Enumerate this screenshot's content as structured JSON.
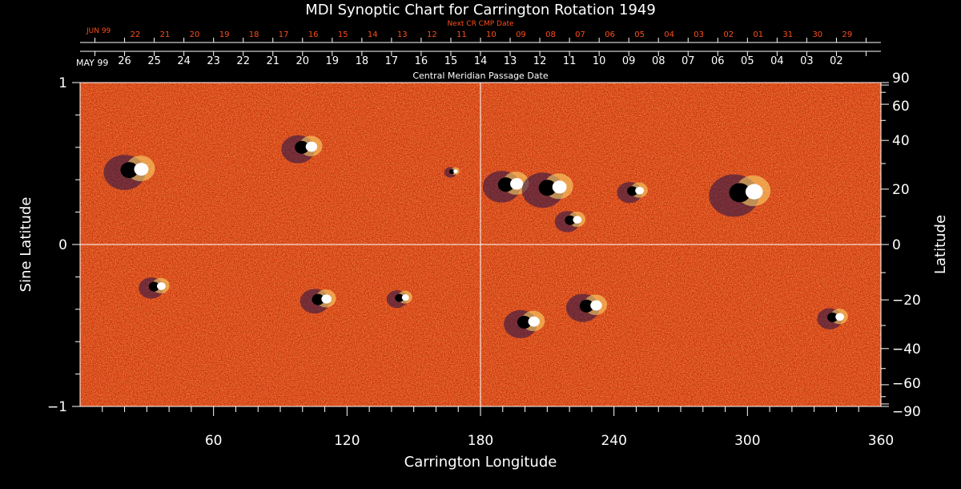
{
  "chart_data": {
    "type": "heatmap",
    "title": "MDI Synoptic Chart for Carrington Rotation 1949",
    "next_cr_label": "Next CR CMP Date",
    "next_cr_month": "JUN 99",
    "next_cr_dates": [
      "22",
      "21",
      "20",
      "19",
      "18",
      "17",
      "16",
      "15",
      "14",
      "13",
      "12",
      "11",
      "10",
      "09",
      "08",
      "07",
      "06",
      "05",
      "04",
      "03",
      "02",
      "01",
      "31",
      "30",
      "29"
    ],
    "cmp_month": "MAY 99",
    "cmp_dates": [
      "26",
      "25",
      "24",
      "23",
      "22",
      "21",
      "20",
      "19",
      "18",
      "17",
      "16",
      "15",
      "14",
      "13",
      "12",
      "11",
      "10",
      "09",
      "08",
      "07",
      "06",
      "05",
      "04",
      "03",
      "02"
    ],
    "cmp_axis_label": "Central Meridian Passage Date",
    "xlabel": "Carrington Longitude",
    "ylabel_left": "Sine Latitude",
    "ylabel_right": "Latitude",
    "xlim": [
      0,
      360
    ],
    "ylim": [
      -1,
      1
    ],
    "x_ticks": [
      60,
      120,
      180,
      240,
      300,
      360
    ],
    "x_tick_labels": [
      "60",
      "120",
      "180",
      "240",
      "300",
      "360"
    ],
    "y_left_ticks": [
      1,
      0,
      -1
    ],
    "y_left_tick_labels": [
      "1",
      "0",
      "−1"
    ],
    "y_right_ticks": [
      90,
      60,
      40,
      20,
      0,
      -20,
      -40,
      -60,
      -90
    ],
    "y_right_tick_labels": [
      "90",
      "60",
      "40",
      "20",
      "0",
      "−20",
      "−40",
      "−60",
      "−90"
    ],
    "crosshair": {
      "longitude": 180,
      "sine_latitude": 0
    },
    "active_regions": [
      {
        "lon": 25,
        "sinlat": 0.46,
        "size": 1.0
      },
      {
        "lon": 102,
        "sinlat": 0.6,
        "size": 0.8
      },
      {
        "lon": 168,
        "sinlat": 0.45,
        "size": 0.3
      },
      {
        "lon": 194,
        "sinlat": 0.37,
        "size": 0.9
      },
      {
        "lon": 213,
        "sinlat": 0.35,
        "size": 1.0
      },
      {
        "lon": 222,
        "sinlat": 0.15,
        "size": 0.6
      },
      {
        "lon": 250,
        "sinlat": 0.33,
        "size": 0.6
      },
      {
        "lon": 300,
        "sinlat": 0.32,
        "size": 1.2
      },
      {
        "lon": 35,
        "sinlat": -0.26,
        "size": 0.6
      },
      {
        "lon": 109,
        "sinlat": -0.34,
        "size": 0.7
      },
      {
        "lon": 145,
        "sinlat": -0.33,
        "size": 0.5
      },
      {
        "lon": 202,
        "sinlat": -0.48,
        "size": 0.8
      },
      {
        "lon": 230,
        "sinlat": -0.38,
        "size": 0.8
      },
      {
        "lon": 340,
        "sinlat": -0.45,
        "size": 0.6
      }
    ]
  },
  "colors": {
    "background": "#000000",
    "axis": "#ffffff",
    "red_text": "#ff4d1a",
    "field_base": "#d83a10",
    "positive": "#ffffff",
    "positive_mid": "#ffe070",
    "negative": "#000000",
    "negative_mid": "#20104a"
  }
}
